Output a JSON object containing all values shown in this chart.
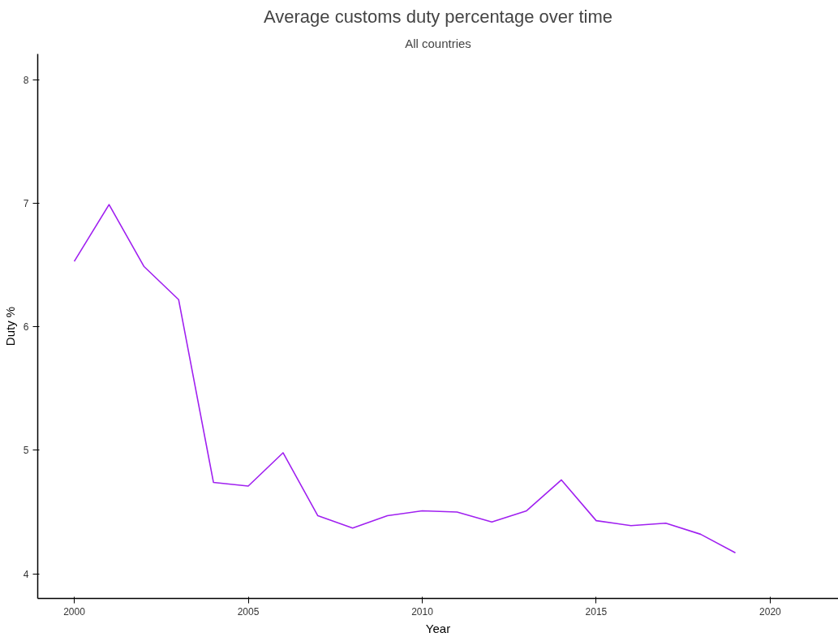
{
  "chart_data": {
    "type": "line",
    "title": "Average customs duty percentage over time",
    "subtitle": "All countries",
    "xlabel": "Year",
    "ylabel": "Duty %",
    "x": [
      2000,
      2001,
      2002,
      2003,
      2004,
      2005,
      2006,
      2007,
      2008,
      2009,
      2010,
      2011,
      2012,
      2013,
      2014,
      2015,
      2016,
      2017,
      2018,
      2019
    ],
    "series": [
      {
        "color": "#a020f0",
        "values": [
          6.53,
          6.99,
          6.49,
          6.22,
          4.74,
          4.71,
          4.98,
          4.47,
          4.37,
          4.47,
          4.51,
          4.5,
          4.42,
          4.51,
          4.76,
          4.43,
          4.39,
          4.41,
          4.32,
          4.17
        ]
      }
    ],
    "xlim": [
      1998.95,
      2021.96
    ],
    "ylim": [
      3.8,
      8.21
    ],
    "xticks": [
      2000,
      2005,
      2010,
      2015,
      2020
    ],
    "yticks": [
      4,
      5,
      6,
      7,
      8
    ],
    "grid": false,
    "marker": "none",
    "line_style": "solid"
  }
}
